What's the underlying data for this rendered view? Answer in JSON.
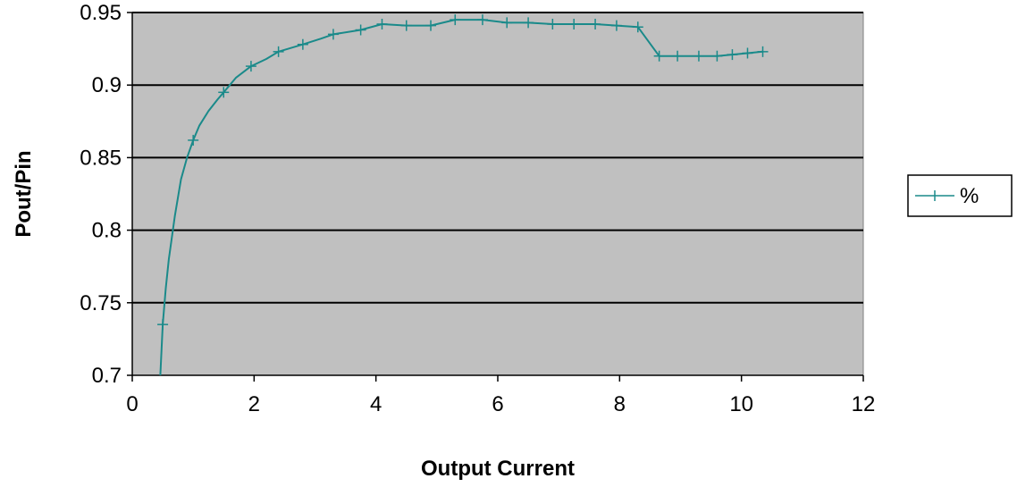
{
  "chart_data": {
    "type": "line",
    "title": "",
    "xlabel": "Output Current",
    "ylabel": "Pout/Pin",
    "xlim": [
      0,
      12
    ],
    "ylim": [
      0.7,
      0.95
    ],
    "x_ticks": [
      0,
      2,
      4,
      6,
      8,
      10,
      12
    ],
    "y_ticks": [
      0.7,
      0.75,
      0.8,
      0.85,
      0.9,
      0.95
    ],
    "x_tick_labels": [
      "0",
      "2",
      "4",
      "6",
      "8",
      "10",
      "12"
    ],
    "y_tick_labels": [
      "0.7",
      "0.75",
      "0.8",
      "0.85",
      "0.9",
      "0.95"
    ],
    "grid": "horizontal major gridlines",
    "plot_background": "#c0c0c0",
    "legend_position": "right",
    "series": [
      {
        "name": "%",
        "color": "#1a8a8a",
        "marker": "plus",
        "points": [
          [
            0.46,
            0.7
          ],
          [
            0.5,
            0.735
          ],
          [
            0.55,
            0.76
          ],
          [
            0.6,
            0.78
          ],
          [
            0.7,
            0.81
          ],
          [
            0.8,
            0.835
          ],
          [
            0.9,
            0.85
          ],
          [
            1.0,
            0.862
          ],
          [
            1.1,
            0.872
          ],
          [
            1.25,
            0.882
          ],
          [
            1.4,
            0.89
          ],
          [
            1.5,
            0.895
          ],
          [
            1.7,
            0.905
          ],
          [
            1.95,
            0.913
          ],
          [
            2.2,
            0.918
          ],
          [
            2.4,
            0.923
          ],
          [
            2.8,
            0.928
          ],
          [
            3.1,
            0.932
          ],
          [
            3.3,
            0.935
          ],
          [
            3.75,
            0.938
          ],
          [
            4.1,
            0.942
          ],
          [
            4.5,
            0.941
          ],
          [
            4.9,
            0.941
          ],
          [
            5.3,
            0.945
          ],
          [
            5.75,
            0.945
          ],
          [
            6.15,
            0.943
          ],
          [
            6.5,
            0.943
          ],
          [
            6.9,
            0.942
          ],
          [
            7.25,
            0.942
          ],
          [
            7.6,
            0.942
          ],
          [
            7.95,
            0.941
          ],
          [
            8.3,
            0.94
          ],
          [
            8.65,
            0.92
          ],
          [
            8.95,
            0.92
          ],
          [
            9.3,
            0.92
          ],
          [
            9.6,
            0.92
          ],
          [
            9.85,
            0.921
          ],
          [
            10.1,
            0.922
          ],
          [
            10.35,
            0.923
          ]
        ],
        "markers_x": [
          0.5,
          1.0,
          1.5,
          1.95,
          2.4,
          2.8,
          3.3,
          3.75,
          4.1,
          4.5,
          4.9,
          5.3,
          5.75,
          6.15,
          6.5,
          6.9,
          7.25,
          7.6,
          7.95,
          8.3,
          8.65,
          8.95,
          9.3,
          9.6,
          9.85,
          10.1,
          10.35
        ]
      }
    ]
  }
}
